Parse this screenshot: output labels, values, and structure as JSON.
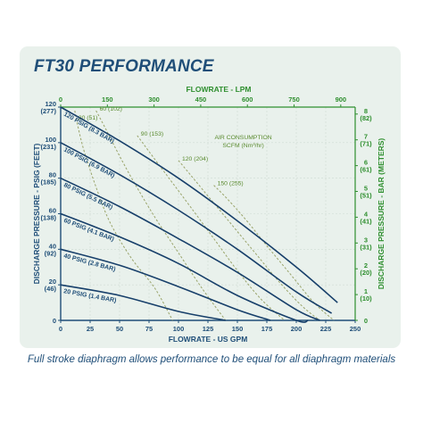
{
  "title": "FT30 PERFORMANCE",
  "caption": "Full stroke diaphragm allows performance to be equal for all diaphragm materials",
  "colors": {
    "curve": "#173f6a",
    "air_curve": "#9aa46b",
    "axis": "#1f4e78",
    "green": "#2f8f2f",
    "grid": "#cfdbd3"
  },
  "chart_data": {
    "type": "line",
    "xlabel": "FLOWRATE - US GPM",
    "x2label": "FLOWRATE - LPM",
    "ylabel": "DISCHARGE PRESSURE - PSIG (FEET)",
    "y2label": "DISCHARGE PRESSURE - BAR (METERS)",
    "xlim": [
      0,
      250
    ],
    "ylim": [
      0,
      120
    ],
    "x_ticks": [
      "0",
      "25",
      "50",
      "75",
      "100",
      "125",
      "150",
      "175",
      "200",
      "225",
      "250"
    ],
    "x2_ticks": [
      "0",
      "150",
      "300",
      "450",
      "600",
      "750",
      "900"
    ],
    "y_ticks": [
      {
        "value": 0,
        "label": "0",
        "sub": ""
      },
      {
        "value": 20,
        "label": "20",
        "sub": "(46)"
      },
      {
        "value": 40,
        "label": "40",
        "sub": "(92)"
      },
      {
        "value": 60,
        "label": "60",
        "sub": "(138)"
      },
      {
        "value": 80,
        "label": "80",
        "sub": "(185)"
      },
      {
        "value": 100,
        "label": "100",
        "sub": "(231)"
      },
      {
        "value": 120,
        "label": "120",
        "sub": "(277)"
      }
    ],
    "y2_ticks": [
      {
        "value": 0,
        "label": "0",
        "sub": ""
      },
      {
        "value": 1,
        "label": "1",
        "sub": "(10)"
      },
      {
        "value": 2,
        "label": "2",
        "sub": "(20)"
      },
      {
        "value": 3,
        "label": "3",
        "sub": "(31)"
      },
      {
        "value": 4,
        "label": "4",
        "sub": "(41)"
      },
      {
        "value": 5,
        "label": "5",
        "sub": "(51)"
      },
      {
        "value": 6,
        "label": "6",
        "sub": "(61)"
      },
      {
        "value": 7,
        "label": "7",
        "sub": "(71)"
      },
      {
        "value": 8,
        "label": "8",
        "sub": "(82)"
      }
    ],
    "y2lim": [
      0,
      8.27
    ],
    "grid": true,
    "series": [
      {
        "name": "120 PSIG (8.3 BAR)",
        "x": [
          0,
          50,
          100,
          150,
          200,
          235
        ],
        "y": [
          120,
          101,
          80,
          56,
          30,
          10
        ]
      },
      {
        "name": "100 PSIG (6.9 BAR)",
        "x": [
          0,
          50,
          100,
          150,
          200,
          230
        ],
        "y": [
          100,
          82,
          62,
          40,
          16,
          4
        ]
      },
      {
        "name": "80 PSIG (5.5 BAR)",
        "x": [
          0,
          50,
          100,
          150,
          200,
          220
        ],
        "y": [
          80,
          64,
          46,
          27,
          6,
          0
        ]
      },
      {
        "name": "60 PSIG (4.1 BAR)",
        "x": [
          0,
          50,
          100,
          150,
          200,
          210
        ],
        "y": [
          60,
          47,
          32,
          14,
          0,
          0
        ]
      },
      {
        "name": "40 PSIG (2.8 BAR)",
        "x": [
          0,
          50,
          100,
          150,
          178
        ],
        "y": [
          40,
          31,
          19,
          6,
          0
        ]
      },
      {
        "name": "20 PSIG (1.4 BAR)",
        "x": [
          0,
          50,
          100,
          140
        ],
        "y": [
          20,
          14,
          5,
          0
        ]
      }
    ],
    "air_consumption": {
      "label_line1": "AIR CONSUMPTION",
      "label_line2": "SCFM (Nm³/hr)",
      "curves": [
        {
          "label": "30 (51)",
          "x": [
            12,
            15,
            20,
            30,
            42,
            60,
            80,
            95
          ],
          "y": [
            118,
            108,
            95,
            75,
            55,
            35,
            18,
            0
          ]
        },
        {
          "label": "60 (102)",
          "x": [
            30,
            38,
            48,
            62,
            80,
            100,
            120,
            140
          ],
          "y": [
            118,
            108,
            95,
            78,
            58,
            38,
            18,
            0
          ]
        },
        {
          "label": "90 (153)",
          "x": [
            65,
            75,
            92,
            110,
            130,
            150,
            170,
            190
          ],
          "y": [
            104,
            95,
            80,
            64,
            46,
            28,
            12,
            0
          ]
        },
        {
          "label": "120 (204)",
          "x": [
            100,
            110,
            125,
            145,
            165,
            185,
            205,
            220
          ],
          "y": [
            90,
            82,
            70,
            54,
            38,
            22,
            8,
            0
          ]
        },
        {
          "label": "150 (255)",
          "x": [
            130,
            142,
            158,
            175,
            195,
            215,
            232
          ],
          "y": [
            76,
            68,
            56,
            42,
            26,
            10,
            0
          ]
        }
      ]
    }
  }
}
